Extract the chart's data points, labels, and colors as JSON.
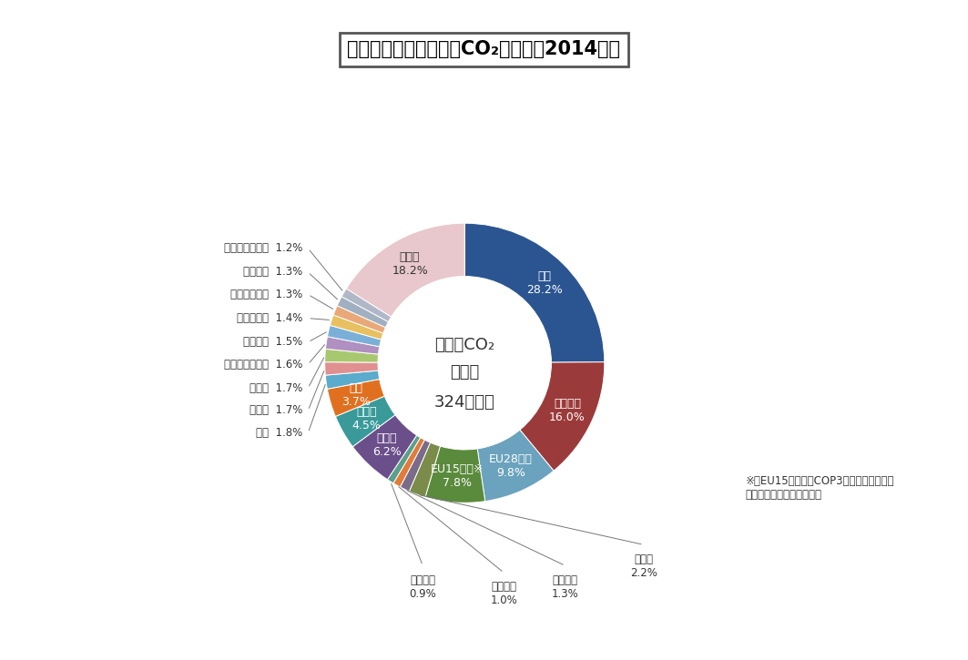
{
  "title": "世界のエネルギー起源CO₂排出量（2014年）",
  "center_text_line1": "世界のCO₂",
  "center_text_line2": "排出量",
  "center_text_line3": "324億トン",
  "footnote_mark": "※",
  "footnote_text": "EU15カ国は、COP3（京都会議）開催\n時点での加盟国数である。",
  "segments": [
    {
      "label": "中国",
      "pct": 28.2,
      "color": "#2B5591",
      "label_in": true,
      "text_color": "#ffffff"
    },
    {
      "label": "アメリカ",
      "pct": 16.0,
      "color": "#9B3A3A",
      "label_in": true,
      "text_color": "#ffffff"
    },
    {
      "label": "EU28カ国",
      "pct": 9.8,
      "color": "#6BA3BE",
      "label_in": true,
      "text_color": "#ffffff"
    },
    {
      "label": "EU15カ国※",
      "pct": 7.8,
      "color": "#5A8A3C",
      "label_in": true,
      "text_color": "#ffffff"
    },
    {
      "label": "ドイツ",
      "pct": 2.2,
      "color": "#7B8B4A",
      "label_in": false,
      "text_color": "#333333",
      "label_side": "bottom"
    },
    {
      "label": "イギリス",
      "pct": 1.3,
      "color": "#7B6B8A",
      "label_in": false,
      "text_color": "#333333",
      "label_side": "bottom"
    },
    {
      "label": "イタリア",
      "pct": 1.0,
      "color": "#E07B3A",
      "label_in": false,
      "text_color": "#333333",
      "label_side": "bottom"
    },
    {
      "label": "フランス",
      "pct": 0.9,
      "color": "#5BA08A",
      "label_in": false,
      "text_color": "#333333",
      "label_side": "bottom"
    },
    {
      "label": "インド",
      "pct": 6.2,
      "color": "#6B4F8A",
      "label_in": true,
      "text_color": "#ffffff"
    },
    {
      "label": "ロシア",
      "pct": 4.5,
      "color": "#3A9A9A",
      "label_in": true,
      "text_color": "#ffffff"
    },
    {
      "label": "日本",
      "pct": 3.7,
      "color": "#E07020",
      "label_in": true,
      "text_color": "#ffffff"
    },
    {
      "label": "韓国",
      "pct": 1.8,
      "color": "#5AABCC",
      "label_in": false,
      "text_color": "#333333",
      "label_side": "left"
    },
    {
      "label": "イラン",
      "pct": 1.7,
      "color": "#E09090",
      "label_in": false,
      "text_color": "#333333",
      "label_side": "left"
    },
    {
      "label": "カナダ",
      "pct": 1.7,
      "color": "#A8C870",
      "label_in": false,
      "text_color": "#333333",
      "label_side": "left"
    },
    {
      "label": "サウジアラビア",
      "pct": 1.6,
      "color": "#B090C0",
      "label_in": false,
      "text_color": "#333333",
      "label_side": "left"
    },
    {
      "label": "ブラジル",
      "pct": 1.5,
      "color": "#7AB0D8",
      "label_in": false,
      "text_color": "#333333",
      "label_side": "left"
    },
    {
      "label": "南アフリカ",
      "pct": 1.4,
      "color": "#E8C060",
      "label_in": false,
      "text_color": "#333333",
      "label_side": "left"
    },
    {
      "label": "インドネシア",
      "pct": 1.3,
      "color": "#E8A878",
      "label_in": false,
      "text_color": "#333333",
      "label_side": "left"
    },
    {
      "label": "メキシコ",
      "pct": 1.3,
      "color": "#A0B0C0",
      "label_in": false,
      "text_color": "#333333",
      "label_side": "left"
    },
    {
      "label": "オーストラリア",
      "pct": 1.2,
      "color": "#B0B8C8",
      "label_in": false,
      "text_color": "#333333",
      "label_side": "left"
    },
    {
      "label": "その他",
      "pct": 18.2,
      "color": "#E8C8CC",
      "label_in": true,
      "text_color": "#333333"
    }
  ],
  "bg_color": "#ffffff",
  "figsize": [
    10.63,
    7.25
  ],
  "dpi": 100
}
